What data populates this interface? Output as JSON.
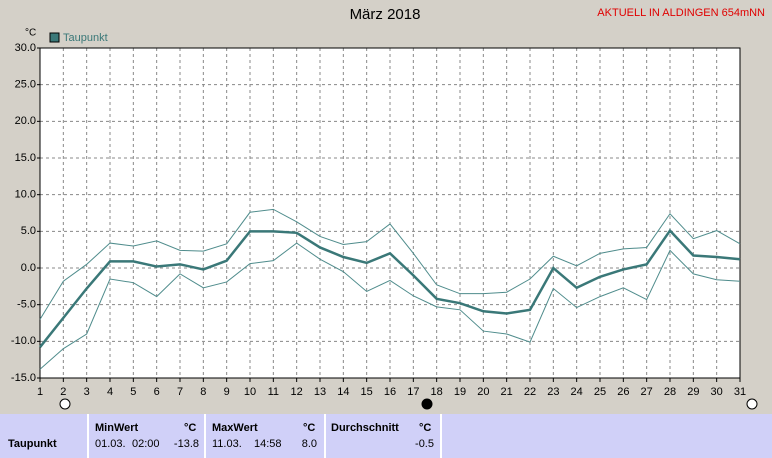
{
  "chart_data": {
    "type": "line",
    "title": "März 2018",
    "annotation": "AKTUELL IN ALDINGEN 654mNN",
    "y_label": "°C",
    "x": [
      1,
      2,
      3,
      4,
      5,
      6,
      7,
      8,
      9,
      10,
      11,
      12,
      13,
      14,
      15,
      16,
      17,
      18,
      19,
      20,
      21,
      22,
      23,
      24,
      25,
      26,
      27,
      28,
      29,
      30,
      31
    ],
    "xlim": [
      1,
      31
    ],
    "xticks": [
      1,
      2,
      3,
      4,
      5,
      6,
      7,
      8,
      9,
      10,
      11,
      12,
      13,
      14,
      15,
      16,
      17,
      18,
      19,
      20,
      21,
      22,
      23,
      24,
      25,
      26,
      27,
      28,
      29,
      30,
      31
    ],
    "ylim": [
      -15,
      30
    ],
    "yticks": [
      {
        "value": -15,
        "label": "-15.0"
      },
      {
        "value": -10,
        "label": "-10.0"
      },
      {
        "value": -5,
        "label": "-5.0"
      },
      {
        "value": 0,
        "label": "0.0"
      },
      {
        "value": 5,
        "label": "5.0"
      },
      {
        "value": 10,
        "label": "10.0"
      },
      {
        "value": 15,
        "label": "15.0"
      },
      {
        "value": 20,
        "label": "20.0"
      },
      {
        "value": 25,
        "label": "25.0"
      },
      {
        "value": 30,
        "label": "30.0"
      }
    ],
    "grid": true,
    "series": [
      {
        "name": "Taupunkt",
        "color": "#3a7878",
        "values": [
          -10.8,
          -6.8,
          -2.8,
          0.9,
          0.9,
          0.2,
          0.5,
          -0.2,
          1.0,
          5.0,
          5.0,
          4.8,
          2.8,
          1.5,
          0.7,
          2.0,
          -1.0,
          -4.2,
          -4.8,
          -5.9,
          -6.2,
          -5.7,
          0,
          -2.7,
          -1.2,
          -0.2,
          0.5,
          5.1,
          1.7,
          1.5,
          1.2
        ]
      }
    ],
    "range": {
      "color": "#4f8c8c",
      "max": [
        -7,
        -1.8,
        0.5,
        3.4,
        3.0,
        3.7,
        2.4,
        2.3,
        3.3,
        7.6,
        8.0,
        6.3,
        4.3,
        3.2,
        3.6,
        6.0,
        2.0,
        -2.3,
        -3.5,
        -3.5,
        -3.3,
        -1.5,
        1.6,
        0.3,
        2.0,
        2.6,
        2.8,
        7.4,
        4.0,
        5.1,
        3.3
      ],
      "min": [
        -13.8,
        -11.0,
        -9.0,
        -1.5,
        -2.0,
        -3.9,
        -0.8,
        -2.7,
        -1.9,
        0.6,
        1.0,
        3.4,
        1.2,
        -0.5,
        -3.2,
        -1.7,
        -3.8,
        -5.3,
        -5.7,
        -8.6,
        -9.0,
        -10.1,
        -2.8,
        -5.4,
        -3.9,
        -2.7,
        -4.3,
        2.4,
        -0.8,
        -1.6,
        -1.8
      ]
    }
  },
  "table": {
    "headers": [
      "MinWert",
      "°C",
      "MaxWert",
      "°C",
      "Durchschnitt",
      "°C"
    ],
    "row": [
      "Taupunkt",
      "01.03.",
      "02:00",
      "-13.8",
      "11.03.",
      "14:58",
      "8.0",
      "-0.5"
    ]
  }
}
